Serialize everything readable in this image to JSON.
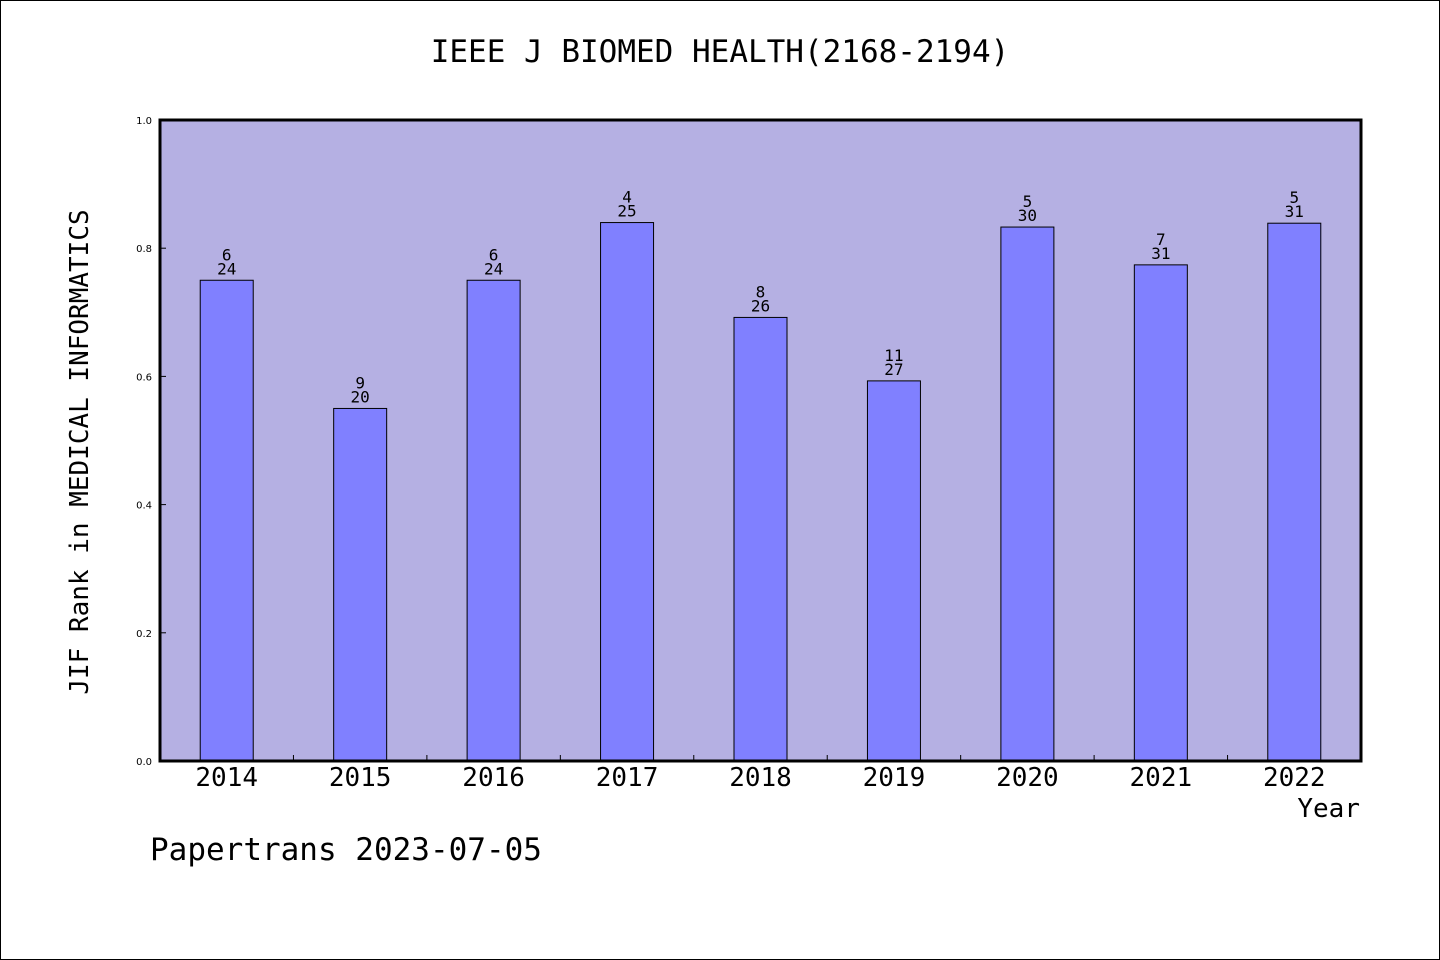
{
  "chart_data": {
    "type": "bar",
    "title": "IEEE J BIOMED HEALTH(2168-2194)",
    "xlabel": "Year",
    "ylabel": "JIF Rank in MEDICAL INFORMATICS",
    "categories": [
      "2014",
      "2015",
      "2016",
      "2017",
      "2018",
      "2019",
      "2020",
      "2021",
      "2022"
    ],
    "values": [
      0.75,
      0.55,
      0.75,
      0.84,
      0.692,
      0.593,
      0.833,
      0.774,
      0.839
    ],
    "rank": [
      "6",
      "9",
      "6",
      "4",
      "8",
      "11",
      "5",
      "7",
      "5"
    ],
    "total": [
      "24",
      "20",
      "24",
      "25",
      "26",
      "27",
      "30",
      "31",
      "31"
    ],
    "ylim": [
      0,
      1.0
    ],
    "yticks": [
      "0.0",
      "0.2",
      "0.4",
      "0.6",
      "0.8",
      "1.0"
    ],
    "grid": false,
    "legend": "none",
    "colors": {
      "plot_background": "#b5b0e3",
      "bar_fill": "#8080ff",
      "bar_stroke": "#000000"
    }
  },
  "footer": {
    "note": "Papertrans 2023-07-05"
  }
}
